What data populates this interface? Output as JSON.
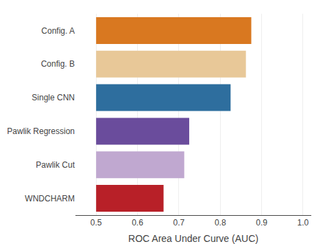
{
  "chart_data": {
    "type": "bar",
    "orientation": "horizontal",
    "categories": [
      "Config. A",
      "Config. B",
      "Single CNN",
      "Pawlik Regression",
      "Pawlik Cut",
      "WNDCHARM"
    ],
    "values": [
      0.875,
      0.862,
      0.825,
      0.725,
      0.713,
      0.663
    ],
    "base": 0.5,
    "colors": [
      "#D97820",
      "#E8C898",
      "#2E6E9E",
      "#6A4C9C",
      "#C0A8D0",
      "#B82028"
    ],
    "xlabel": "ROC Area Under Curve (AUC)",
    "xlim": [
      0.45,
      1.02
    ],
    "xticks": [
      0.5,
      0.6,
      0.7,
      0.8,
      0.9,
      {
        "value": 1,
        "label": "1.0"
      }
    ],
    "grid": true
  }
}
